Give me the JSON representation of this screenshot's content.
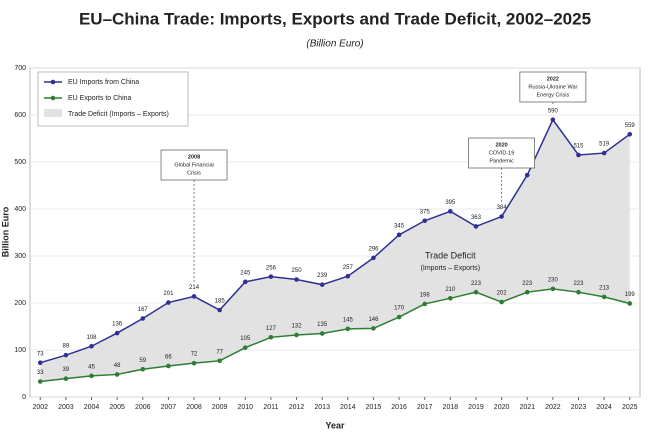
{
  "chart_data": {
    "type": "line",
    "title": "EU–China Trade: Imports, Exports and Trade Deficit, 2002–2025",
    "subtitle": "(Billion Euro)",
    "x_label": "Year",
    "y_label": "Billion Euro",
    "x": [
      2002,
      2003,
      2004,
      2005,
      2006,
      2007,
      2008,
      2009,
      2010,
      2011,
      2012,
      2013,
      2014,
      2015,
      2016,
      2017,
      2018,
      2019,
      2020,
      2021,
      2022,
      2023,
      2024,
      2025
    ],
    "xlim": [
      2001.6,
      2025.4
    ],
    "ylim": [
      0,
      700
    ],
    "yticks": [
      0,
      100,
      200,
      300,
      400,
      500,
      600,
      700
    ],
    "series": [
      {
        "name": "EU Imports from China",
        "color": "#2e3192",
        "values": [
          73,
          89,
          108,
          136,
          167,
          201,
          214,
          185,
          245,
          256,
          250,
          239,
          257,
          296,
          345,
          375,
          395,
          363,
          384,
          472,
          590,
          515,
          519,
          559
        ]
      },
      {
        "name": "EU Exports to China",
        "color": "#2e7d32",
        "values": [
          33,
          39,
          45,
          48,
          59,
          66,
          72,
          77,
          105,
          127,
          132,
          135,
          145,
          146,
          170,
          198,
          210,
          223,
          202,
          223,
          230,
          223,
          213,
          199
        ]
      }
    ],
    "area": {
      "name": "Trade Deficit (Imports – Exports)",
      "color": "#e2e2e2"
    },
    "area_label": [
      "Trade Deficit",
      "(Imports – Exports)"
    ],
    "annotations": [
      {
        "lines": [
          "2008",
          "Global Financial",
          "Crisis"
        ]
      },
      {
        "lines": [
          "2020",
          "COVID-19",
          "Pandemic"
        ]
      },
      {
        "lines": [
          "2022",
          "Russia-Ukraine War",
          "Energy Crisis"
        ]
      }
    ],
    "legend": "top-left"
  }
}
